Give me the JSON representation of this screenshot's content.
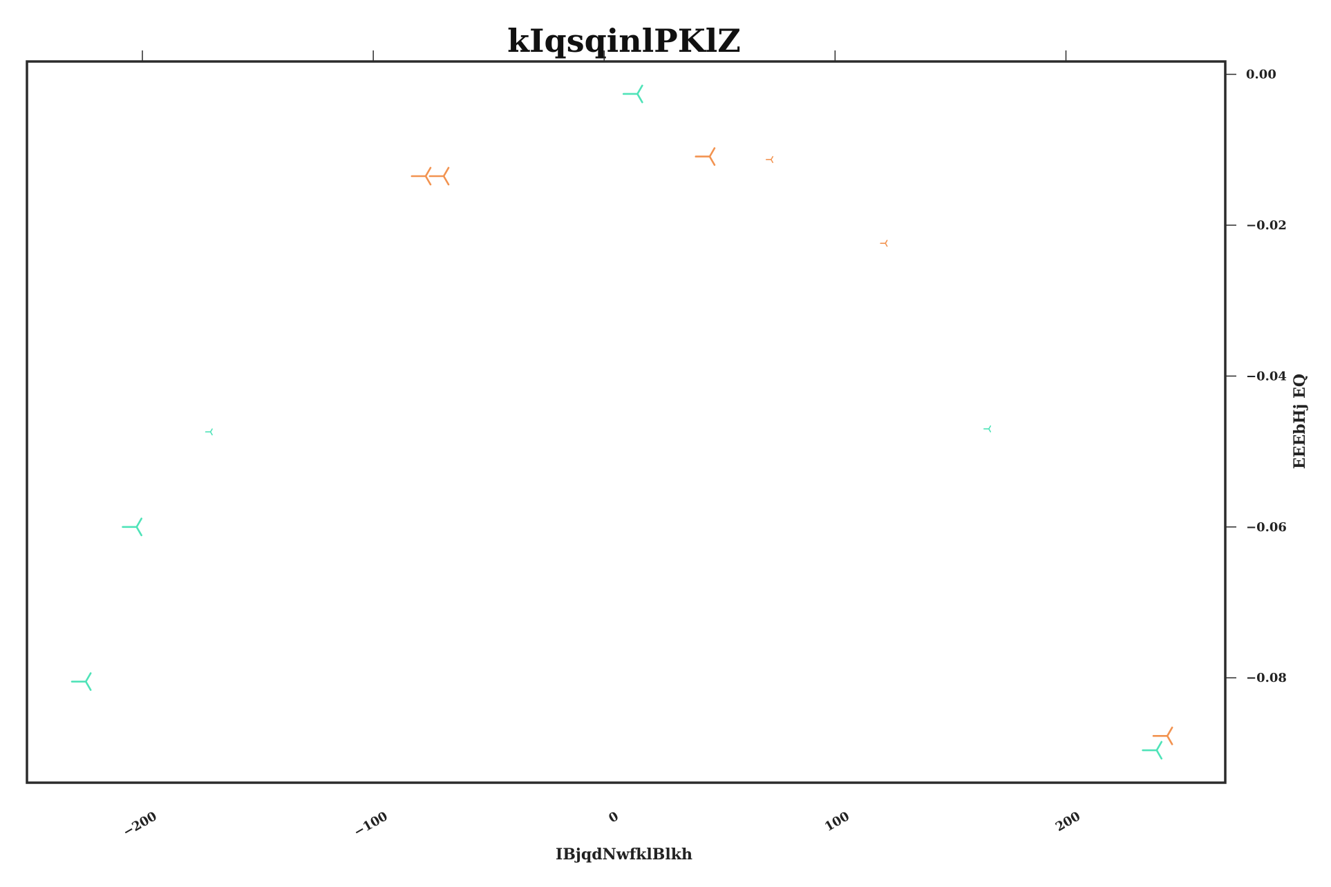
{
  "chart_data": {
    "type": "scatter",
    "title": "kIqsqinlPKlZ",
    "xlabel": "IBjqdNwfklBlkh",
    "ylabel": "EEEbHj EQ",
    "xlim": [
      -250,
      269
    ],
    "ylim": [
      -0.0939,
      0.0017
    ],
    "grid": false,
    "legend": "none",
    "x_ticks": [
      -200,
      -100,
      0,
      100,
      200
    ],
    "x_tick_labels": [
      "−200",
      "−100",
      "0",
      "100",
      "200"
    ],
    "y_ticks": [
      0.0,
      -0.02,
      -0.04,
      -0.06,
      -0.08
    ],
    "y_tick_labels": [
      "0.00",
      "−0.02",
      "−0.04",
      "−0.06",
      "−0.08"
    ],
    "marker": "tri_down",
    "series": [
      {
        "color": "#4fe3b8",
        "points": [
          {
            "x": 14.4,
            "y": -0.0026,
            "size": 1.0
          },
          {
            "x": -170.5,
            "y": -0.0474,
            "size": 0.35
          },
          {
            "x": -202.5,
            "y": -0.06,
            "size": 1.0
          },
          {
            "x": -224.5,
            "y": -0.0805,
            "size": 1.0
          },
          {
            "x": 166.6,
            "y": -0.047,
            "size": 0.35
          },
          {
            "x": 239.3,
            "y": -0.0896,
            "size": 1.0
          }
        ]
      },
      {
        "color": "#f29350",
        "points": [
          {
            "x": -77.3,
            "y": -0.0135,
            "size": 1.0
          },
          {
            "x": -69.5,
            "y": -0.0135,
            "size": 1.0
          },
          {
            "x": 45.7,
            "y": -0.0109,
            "size": 1.0
          },
          {
            "x": 72.3,
            "y": -0.0113,
            "size": 0.35
          },
          {
            "x": 121.8,
            "y": -0.0224,
            "size": 0.35
          },
          {
            "x": 243.9,
            "y": -0.0877,
            "size": 1.0
          }
        ]
      }
    ]
  }
}
